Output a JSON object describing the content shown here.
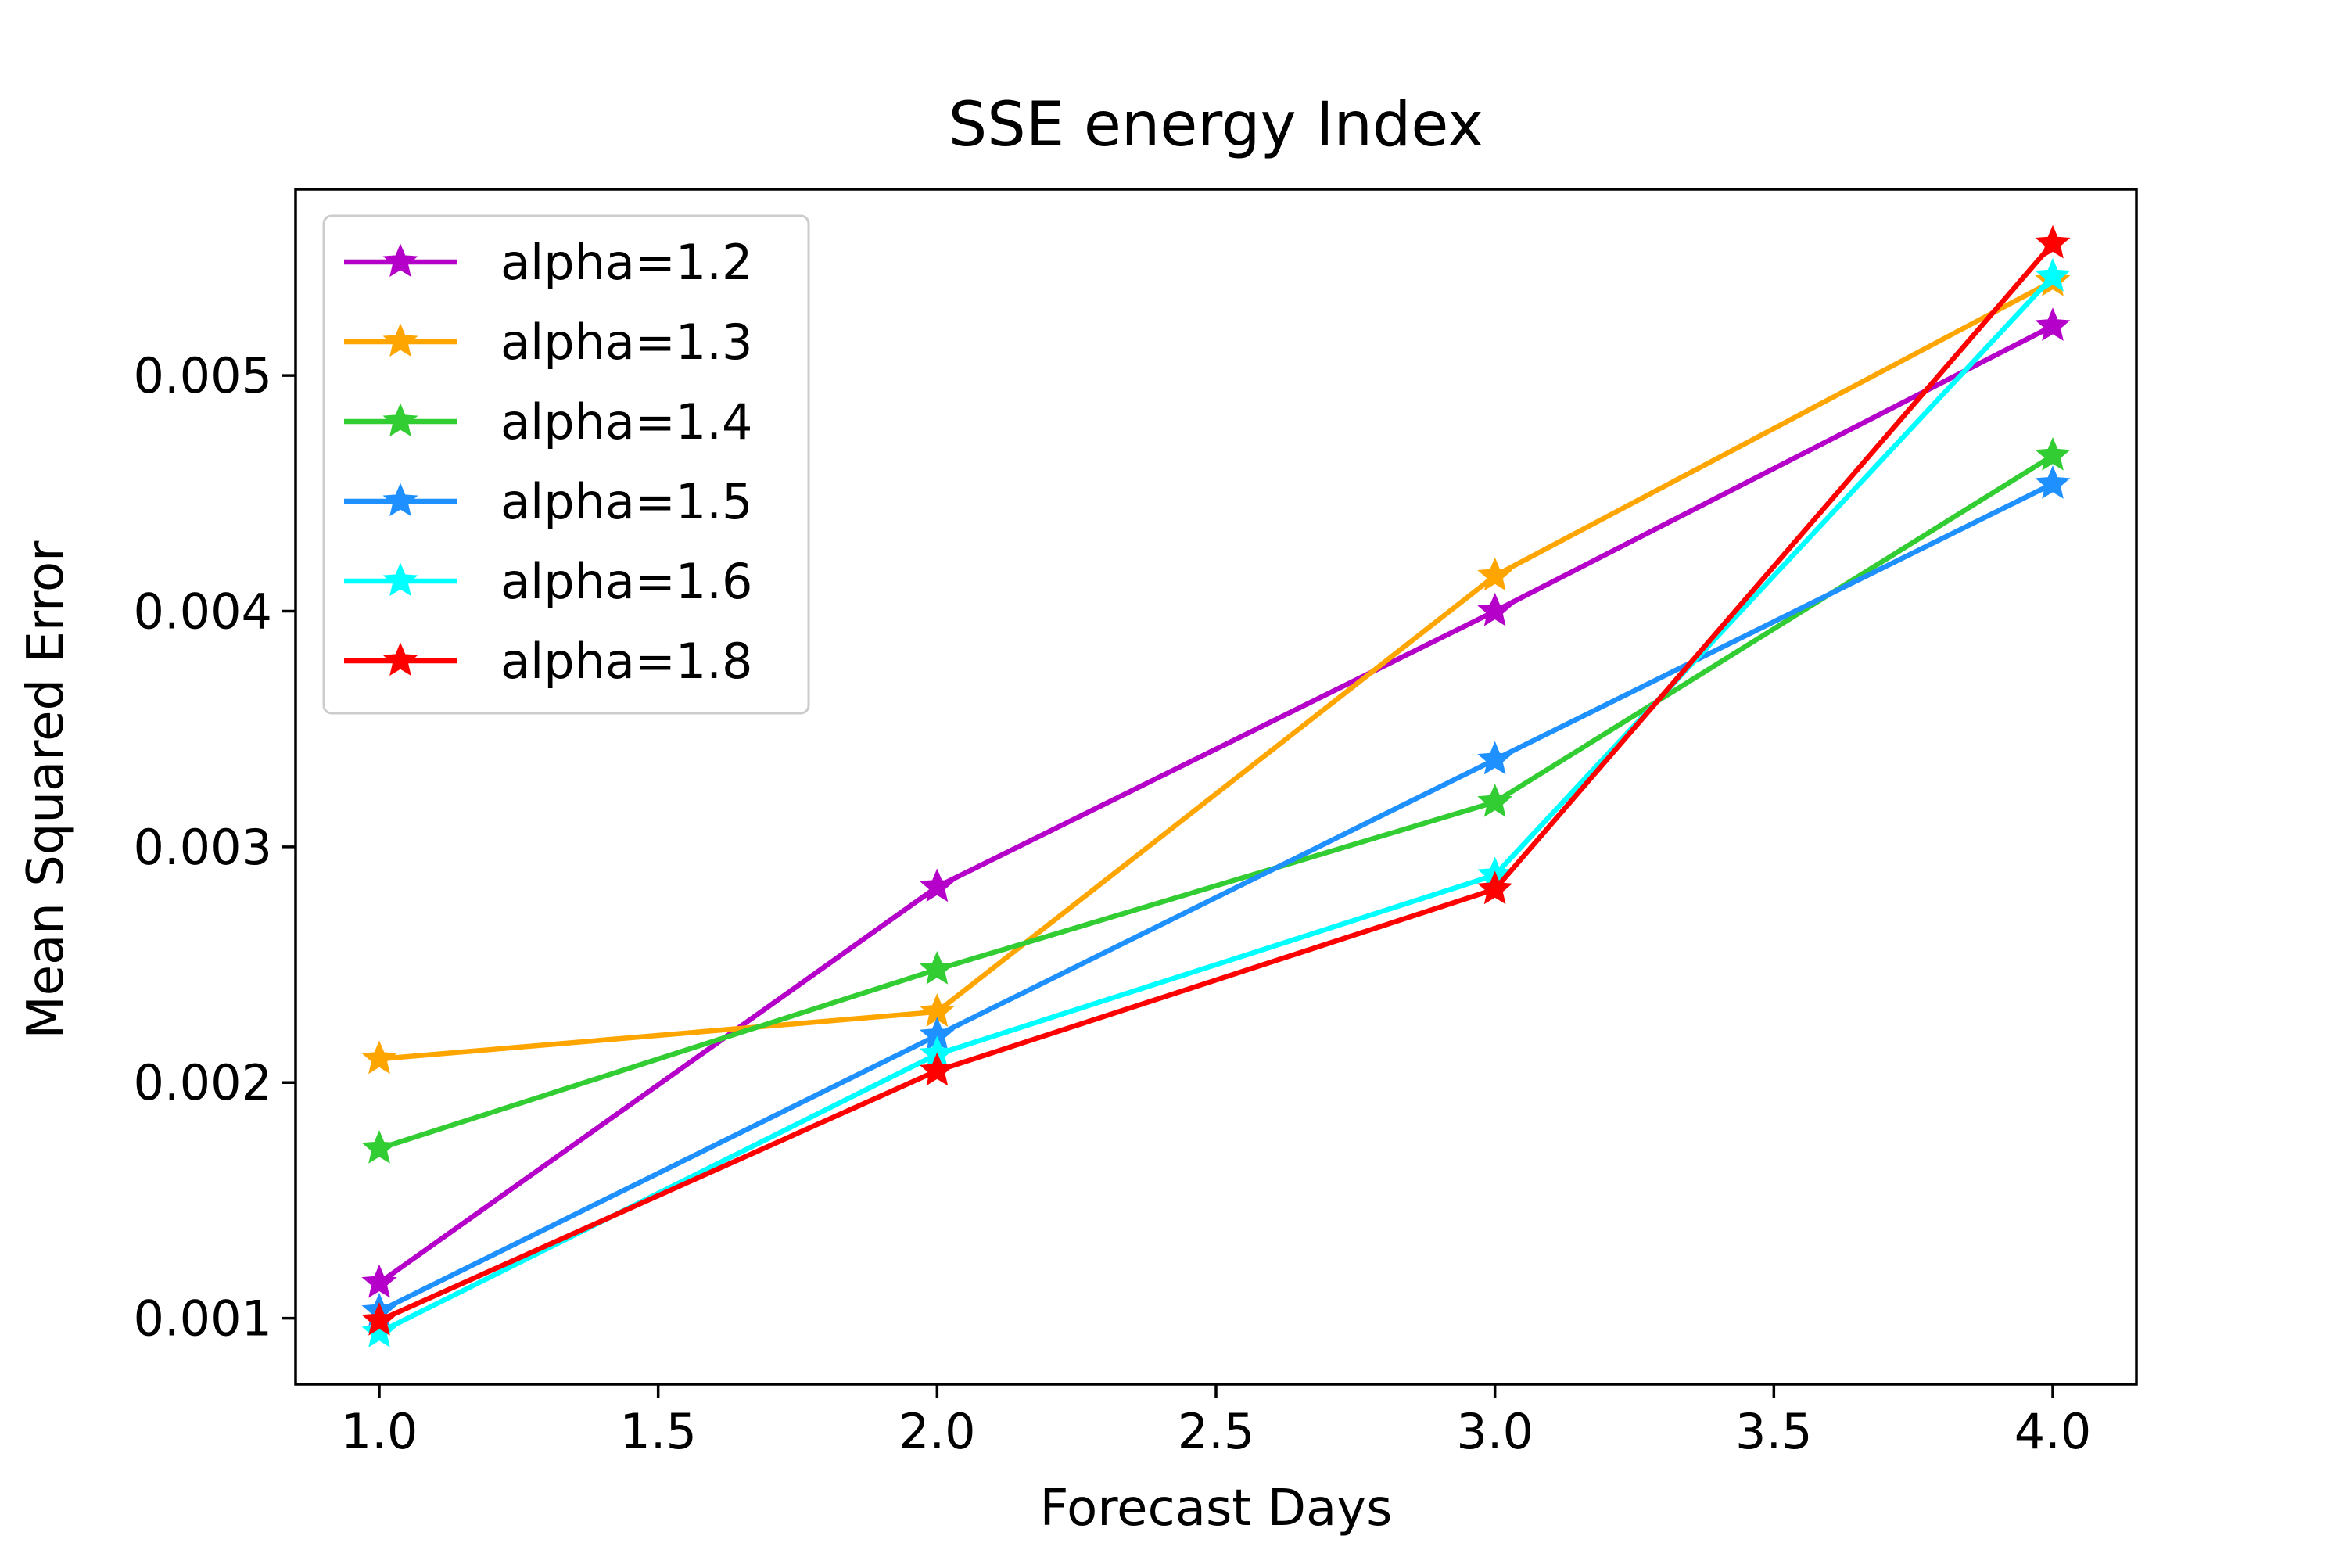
{
  "chart_data": {
    "type": "line",
    "title": "SSE energy Index",
    "xlabel": "Forecast Days",
    "ylabel": "Mean Squared Error",
    "x": [
      1.0,
      2.0,
      3.0,
      4.0
    ],
    "xlim": [
      0.85,
      4.15
    ],
    "ylim": [
      0.00072,
      0.00579
    ],
    "xticks": [
      1.0,
      1.5,
      2.0,
      2.5,
      3.0,
      3.5,
      4.0
    ],
    "xtick_labels": [
      "1.0",
      "1.5",
      "2.0",
      "2.5",
      "3.0",
      "3.5",
      "4.0"
    ],
    "yticks": [
      0.001,
      0.002,
      0.003,
      0.004,
      0.005
    ],
    "ytick_labels": [
      "0.001",
      "0.002",
      "0.003",
      "0.004",
      "0.005"
    ],
    "grid": false,
    "legend_position": "top-left",
    "marker": "star",
    "series": [
      {
        "name": "alpha=1.2",
        "color": "#b400c8",
        "values": [
          0.00115,
          0.00283,
          0.004,
          0.00521
        ]
      },
      {
        "name": "alpha=1.3",
        "color": "#ffa500",
        "values": [
          0.0021,
          0.0023,
          0.00415,
          0.0054
        ]
      },
      {
        "name": "alpha=1.4",
        "color": "#32cd32",
        "values": [
          0.00172,
          0.00248,
          0.00319,
          0.00466
        ]
      },
      {
        "name": "alpha=1.5",
        "color": "#1e90ff",
        "values": [
          0.00103,
          0.0022,
          0.00337,
          0.00454
        ]
      },
      {
        "name": "alpha=1.6",
        "color": "#00ffff",
        "values": [
          0.00094,
          0.00212,
          0.00288,
          0.00542
        ]
      },
      {
        "name": "alpha=1.8",
        "color": "#ff0000",
        "values": [
          0.00099,
          0.00205,
          0.00282,
          0.00556
        ]
      }
    ]
  }
}
